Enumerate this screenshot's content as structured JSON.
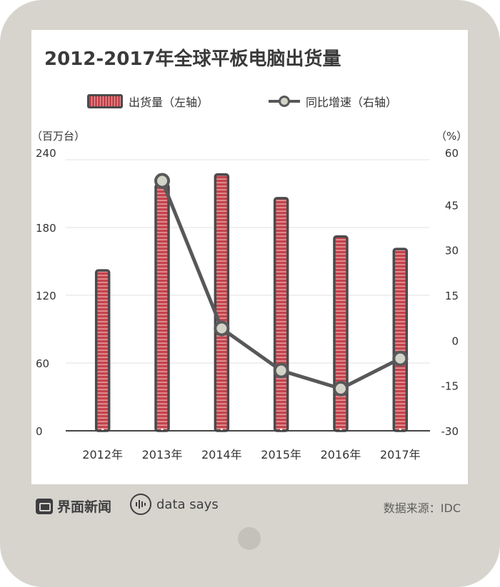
{
  "title": "2012-2017年全球平板电脑出货量",
  "legend": {
    "bar_label": "出货量（左轴）",
    "line_label": "同比增速（右轴）"
  },
  "unit_left": "（百万台）",
  "unit_right": "（%）",
  "chart_data": {
    "type": "bar",
    "title": "2012-2017年全球平板电脑出货量",
    "categories": [
      "2012年",
      "2013年",
      "2014年",
      "2015年",
      "2016年",
      "2017年"
    ],
    "series": [
      {
        "name": "出货量（左轴）",
        "type": "bar",
        "axis": "left",
        "values": [
          142,
          218,
          227,
          206,
          172,
          161
        ]
      },
      {
        "name": "同比增速（右轴）",
        "type": "line",
        "axis": "right",
        "values": [
          null,
          53,
          4,
          -10,
          -16,
          -6
        ]
      }
    ],
    "y_left": {
      "range": [
        0,
        240
      ],
      "ticks": [
        0,
        60,
        120,
        180,
        240
      ]
    },
    "y_right": {
      "range": [
        -30,
        60
      ],
      "ticks": [
        -30,
        -15,
        0,
        15,
        30,
        45,
        60
      ]
    },
    "grid": true,
    "legend_position": "top",
    "colors": {
      "bar": "#c4444c",
      "bar_outline": "#4a4a4c",
      "line": "#58585a",
      "marker_fill": "#d3d3c8"
    }
  },
  "footer": {
    "brand1": "界面新闻",
    "brand2": "data says",
    "source": "数据来源：IDC"
  }
}
